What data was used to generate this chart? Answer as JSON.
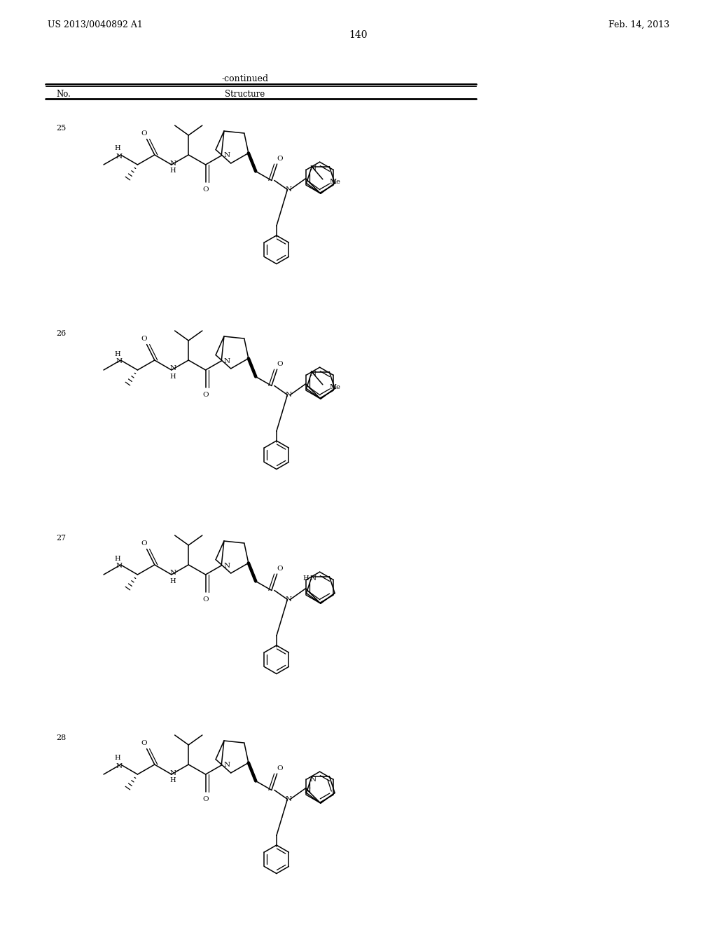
{
  "page_number": "140",
  "patent_number": "US 2013/0040892 A1",
  "patent_date": "Feb. 14, 2013",
  "continued": "-continued",
  "col1": "No.",
  "col2": "Structure",
  "bg": "#ffffff",
  "compounds": [
    "25",
    "26",
    "27",
    "28"
  ]
}
